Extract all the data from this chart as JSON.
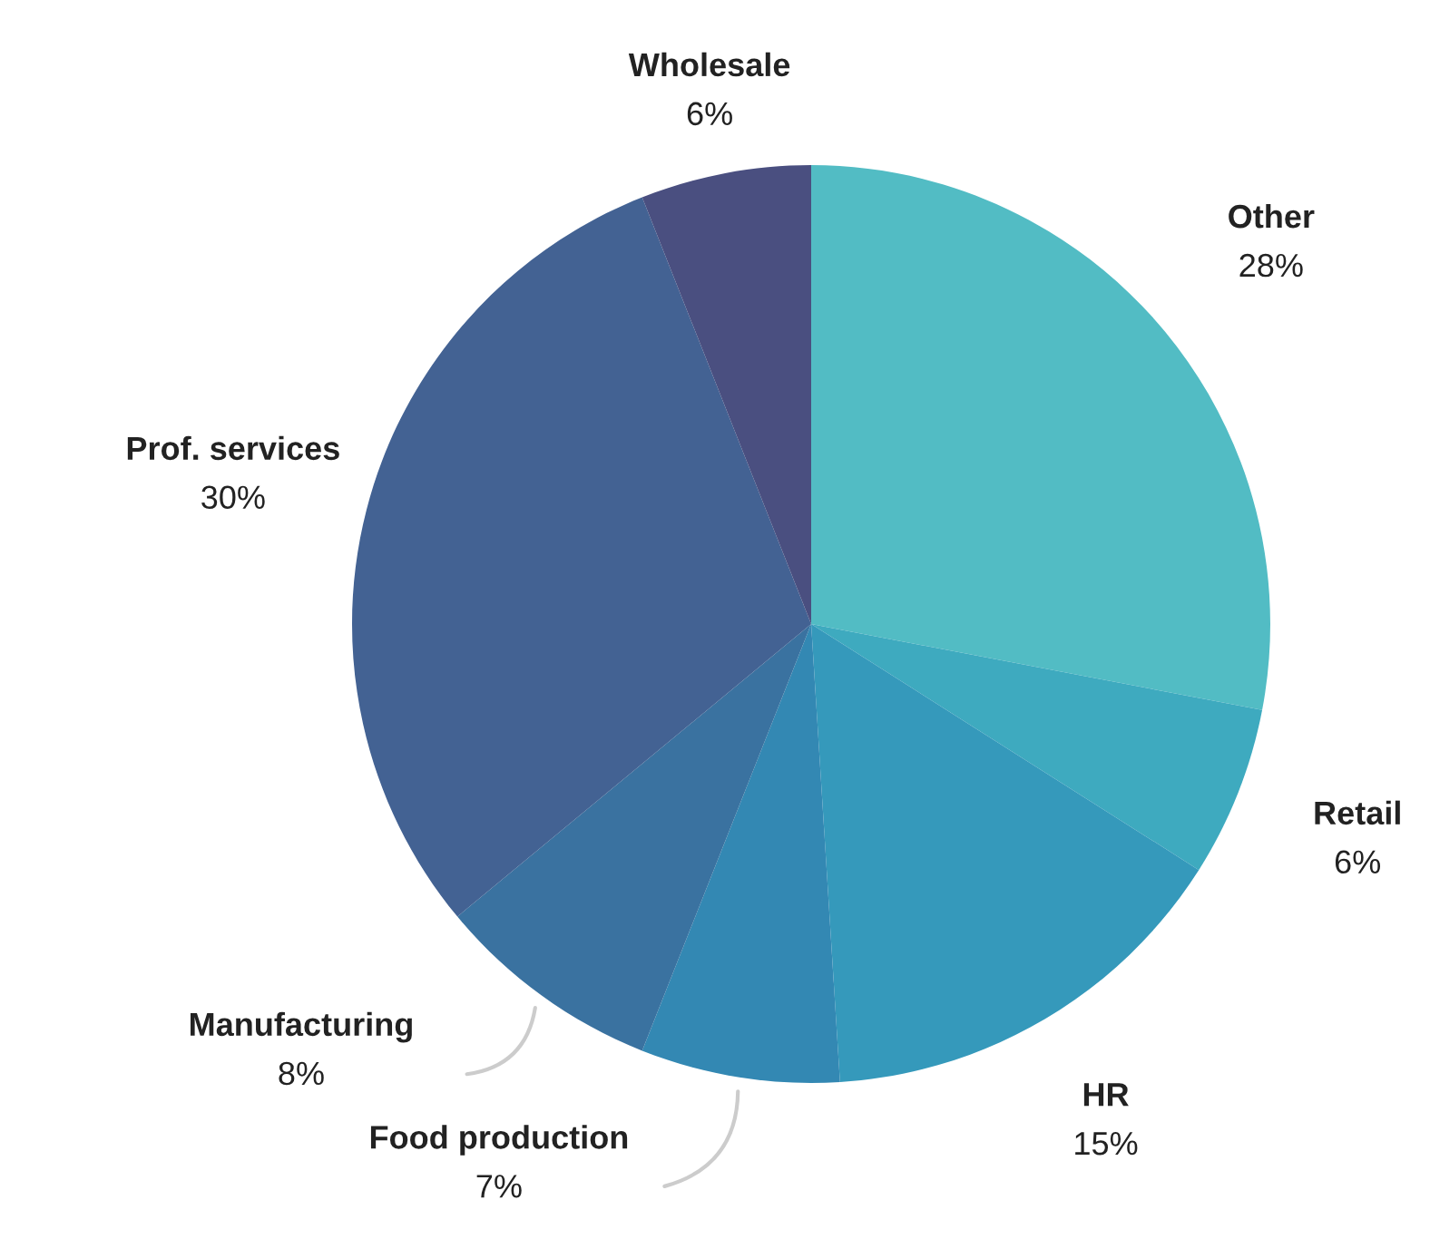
{
  "chart_data": {
    "type": "pie",
    "categories": [
      "Other",
      "Retail",
      "HR",
      "Food production",
      "Manufacturing",
      "Prof. services",
      "Wholesale"
    ],
    "values": [
      28,
      6,
      15,
      7,
      8,
      30,
      6
    ],
    "value_labels": [
      "28%",
      "6%",
      "15%",
      "7%",
      "8%",
      "30%",
      "6%"
    ],
    "colors": [
      "#52bcc4",
      "#3eaabf",
      "#3599bb",
      "#3388b3",
      "#3a72a0",
      "#436293",
      "#4a4f80"
    ],
    "legend": false
  }
}
